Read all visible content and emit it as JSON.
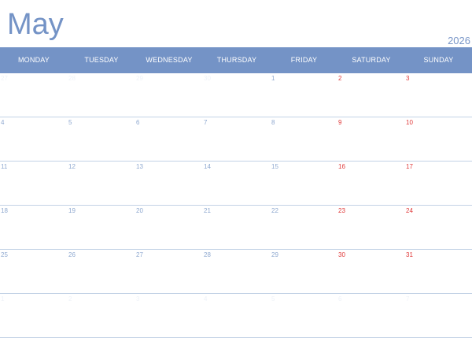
{
  "header": {
    "month": "May",
    "year": "2026"
  },
  "weekdays": [
    "MONDAY",
    "TUESDAY",
    "WEDNESDAY",
    "THURSDAY",
    "FRIDAY",
    "SATURDAY",
    "SUNDAY"
  ],
  "weeks": [
    [
      "27",
      "28",
      "29",
      "30",
      "1",
      "2",
      "3"
    ],
    [
      "4",
      "5",
      "6",
      "7",
      "8",
      "9",
      "10"
    ],
    [
      "11",
      "12",
      "13",
      "14",
      "15",
      "16",
      "17"
    ],
    [
      "18",
      "19",
      "20",
      "21",
      "22",
      "23",
      "24"
    ],
    [
      "25",
      "26",
      "27",
      "28",
      "29",
      "30",
      "31"
    ],
    [
      "1",
      "2",
      "3",
      "4",
      "5",
      "6",
      "7"
    ]
  ],
  "colors": {
    "accent": "#7493c6",
    "weekday_number": "#8fa9d0",
    "weekend_number": "#e03a3a",
    "out_of_month_number": "#eef2f8",
    "grid_line": "#c3d2e6"
  }
}
